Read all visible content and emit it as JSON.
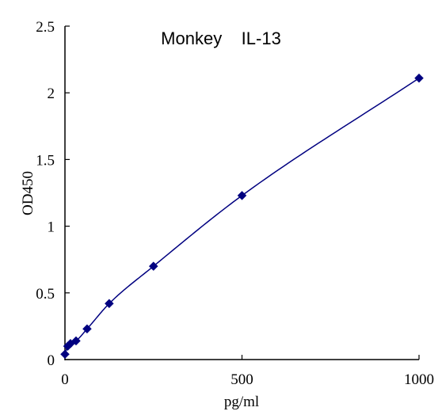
{
  "chart_data": {
    "type": "scatter",
    "title": "Monkey    IL-13",
    "xlabel": "pg/ml",
    "ylabel": "OD450",
    "xlim": [
      0,
      1000
    ],
    "ylim": [
      0,
      2.5
    ],
    "x_ticks": [
      "0",
      "500",
      "1000"
    ],
    "y_ticks": [
      "0",
      "0.5",
      "1",
      "1.5",
      "2",
      "2.5"
    ],
    "grid": false,
    "legend": "none",
    "series": [
      {
        "x": [
          0,
          7.8,
          15.6,
          31.25,
          62.5,
          125,
          250,
          500,
          1000
        ],
        "y": [
          0.04,
          0.1,
          0.12,
          0.14,
          0.23,
          0.42,
          0.7,
          1.23,
          2.11
        ],
        "marker": "diamond",
        "fit": "smooth curve"
      }
    ],
    "colors": {
      "series": "#000080",
      "axis": "#000000"
    }
  }
}
